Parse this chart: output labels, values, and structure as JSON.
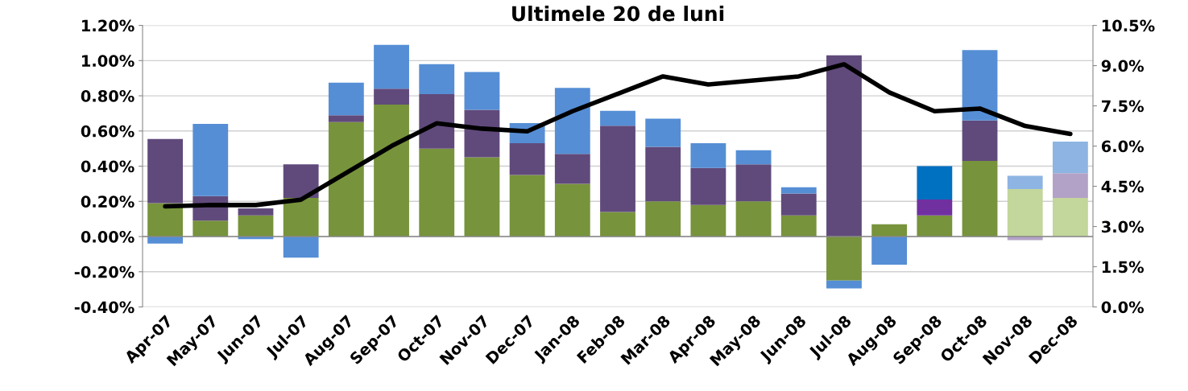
{
  "chart_data": {
    "type": "bar",
    "title": "Ultimele 20 de luni",
    "stacked": true,
    "grid": "y",
    "categories": [
      "Apr-07",
      "May-07",
      "Jun-07",
      "Jul-07",
      "Aug-07",
      "Sep-07",
      "Oct-07",
      "Nov-07",
      "Dec-07",
      "Jan-08",
      "Feb-08",
      "Mar-08",
      "Apr-08",
      "May-08",
      "Jun-08",
      "Jul-08",
      "Aug-08",
      "Sep-08",
      "Oct-08",
      "Nov-08",
      "Dec-08"
    ],
    "series": [
      {
        "colors": [
          "#77933c",
          "#77933c",
          "#77933c",
          "#77933c",
          "#77933c",
          "#77933c",
          "#77933c",
          "#77933c",
          "#77933c",
          "#77933c",
          "#77933c",
          "#77933c",
          "#77933c",
          "#77933c",
          "#77933c",
          "#77933c",
          "#77933c",
          "#77933c",
          "#77933c",
          "#c3d69b",
          "#c3d69b"
        ],
        "values": [
          0.19,
          0.09,
          0.12,
          0.22,
          0.65,
          0.75,
          0.5,
          0.45,
          0.35,
          0.3,
          0.14,
          0.2,
          0.18,
          0.2,
          0.12,
          -0.25,
          0.07,
          0.12,
          0.43,
          0.27,
          0.22
        ]
      },
      {
        "colors": [
          "#604a7b",
          "#604a7b",
          "#604a7b",
          "#604a7b",
          "#604a7b",
          "#604a7b",
          "#604a7b",
          "#604a7b",
          "#604a7b",
          "#604a7b",
          "#604a7b",
          "#604a7b",
          "#604a7b",
          "#604a7b",
          "#604a7b",
          "#604a7b",
          "#604a7b",
          "#7030a0",
          "#604a7b",
          "#b3a2c7",
          "#b3a2c7"
        ],
        "values": [
          0.365,
          0.14,
          0.04,
          0.19,
          0.04,
          0.09,
          0.31,
          0.27,
          0.18,
          0.17,
          0.49,
          0.31,
          0.21,
          0.21,
          0.125,
          1.03,
          null,
          0.09,
          0.23,
          -0.02,
          0.14
        ]
      },
      {
        "colors": [
          "#558ed5",
          "#558ed5",
          "#558ed5",
          "#558ed5",
          "#558ed5",
          "#558ed5",
          "#558ed5",
          "#558ed5",
          "#558ed5",
          "#558ed5",
          "#558ed5",
          "#558ed5",
          "#558ed5",
          "#558ed5",
          "#558ed5",
          "#558ed5",
          "#558ed5",
          "#0070c0",
          "#558ed5",
          "#8eb4e3",
          "#8eb4e3"
        ],
        "values": [
          -0.04,
          0.41,
          -0.015,
          -0.12,
          0.185,
          0.25,
          0.17,
          0.215,
          0.115,
          0.375,
          0.085,
          0.16,
          0.14,
          0.08,
          0.035,
          -0.045,
          -0.16,
          0.19,
          0.4,
          0.075,
          0.18
        ]
      },
      {
        "type": "line",
        "axis": "y2",
        "color": "#000000",
        "marker": "none",
        "line_style": "solid",
        "values": [
          3.75,
          3.8,
          3.8,
          4.0,
          5.0,
          6.0,
          6.85,
          6.65,
          6.55,
          7.3,
          7.95,
          8.6,
          8.3,
          8.45,
          8.6,
          9.05,
          8.0,
          7.3,
          7.4,
          6.75,
          6.45
        ]
      }
    ],
    "ylim": [
      -0.4,
      1.2
    ],
    "yticks": [
      {
        "value": -0.4,
        "label": "-0.40%"
      },
      {
        "value": -0.2,
        "label": "-0.20%"
      },
      {
        "value": 0,
        "label": "0.00%"
      },
      {
        "value": 0.2,
        "label": "0.20%"
      },
      {
        "value": 0.4,
        "label": "0.40%"
      },
      {
        "value": 0.6,
        "label": "0.60%"
      },
      {
        "value": 0.8,
        "label": "0.80%"
      },
      {
        "value": 1.0,
        "label": "1.00%"
      },
      {
        "value": 1.2,
        "label": "1.20%"
      }
    ],
    "y2lim": [
      0,
      10.5
    ],
    "y2ticks": [
      {
        "value": 0,
        "label": "0.0%"
      },
      {
        "value": 1.5,
        "label": "1.5%"
      },
      {
        "value": 3,
        "label": "3.0%"
      },
      {
        "value": 4.5,
        "label": "4.5%"
      },
      {
        "value": 6,
        "label": "6.0%"
      },
      {
        "value": 7.5,
        "label": "7.5%"
      },
      {
        "value": 9,
        "label": "9.0%"
      },
      {
        "value": 10.5,
        "label": "10.5%"
      }
    ]
  }
}
